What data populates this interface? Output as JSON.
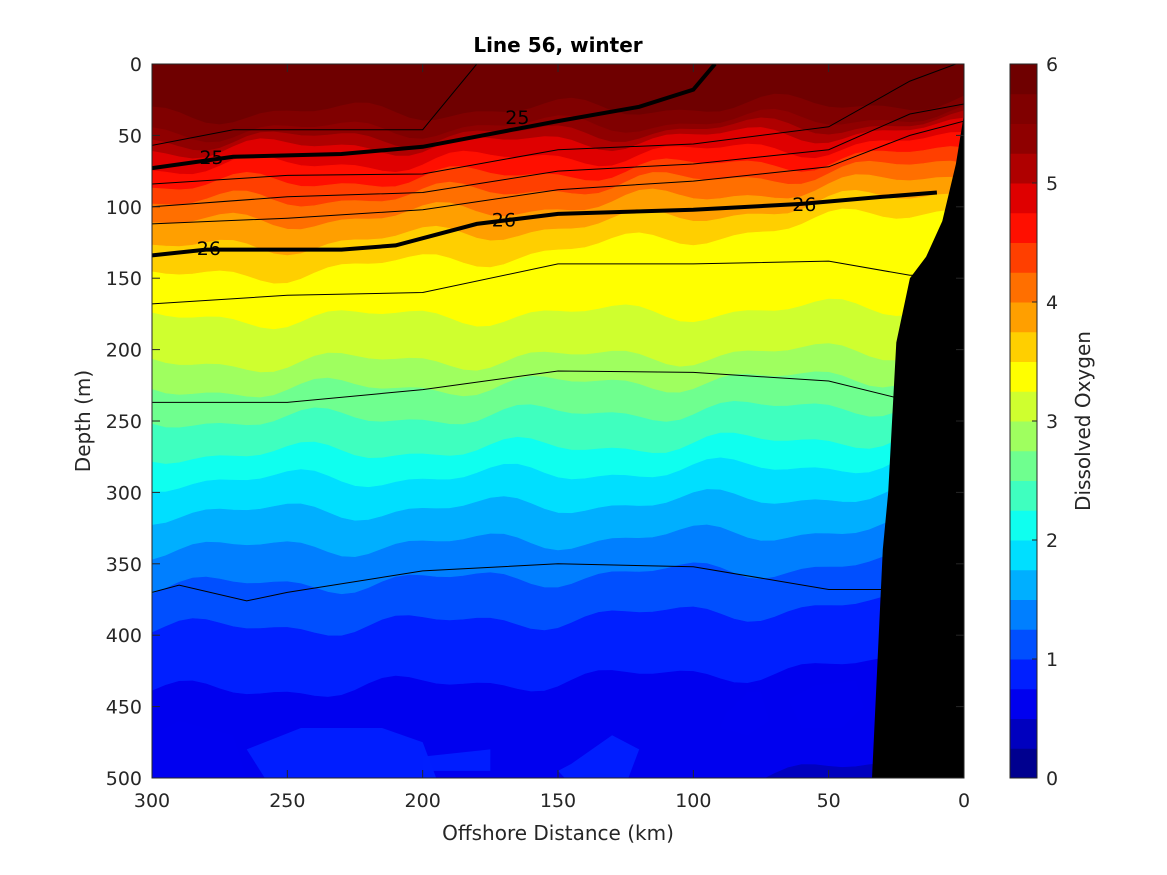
{
  "chart_data": {
    "type": "contourf",
    "title": "Line 56, winter",
    "xlabel": "Offshore Distance (km)",
    "ylabel": "Depth (m)",
    "colorbar_label": "Dissolved Oxygen",
    "xlim": [
      300,
      0
    ],
    "ylim": [
      0,
      500
    ],
    "x_direction": "reversed",
    "y_direction": "depth increasing downward",
    "x_ticks": [
      "300",
      "250",
      "200",
      "150",
      "100",
      "50",
      "0"
    ],
    "y_ticks": [
      "0",
      "50",
      "100",
      "150",
      "200",
      "250",
      "300",
      "350",
      "400",
      "450",
      "500"
    ],
    "colorbar_ticks": [
      "0",
      "1",
      "2",
      "3",
      "4",
      "5",
      "6"
    ],
    "colorbar_range": [
      0,
      6
    ],
    "colorbar_step": 0.25,
    "colormap": "jet",
    "colors": [
      "#00008f",
      "#0000bf",
      "#0000ef",
      "#001fff",
      "#004fff",
      "#007fff",
      "#00afff",
      "#00dfff",
      "#0fffef",
      "#3fffbf",
      "#6fff8f",
      "#9fff5f",
      "#cfff2f",
      "#ffff00",
      "#ffcf00",
      "#ff9f00",
      "#ff6f00",
      "#ff3f00",
      "#ff0f00",
      "#df0000",
      "#af0000",
      "#8f0000",
      "#800000",
      "#6f0000"
    ],
    "oxygen_profile": {
      "depth_m": [
        0,
        25,
        45,
        60,
        75,
        90,
        105,
        120,
        140,
        160,
        185,
        210,
        240,
        270,
        300,
        330,
        360,
        390,
        420,
        460,
        500
      ],
      "oxygen_at_300km": [
        6.0,
        5.9,
        5.6,
        5.0,
        4.7,
        4.4,
        4.1,
        3.9,
        3.6,
        3.4,
        3.2,
        3.0,
        2.6,
        2.3,
        1.9,
        1.6,
        1.3,
        1.05,
        0.8,
        0.7,
        0.6
      ]
    },
    "shelf_bottom": {
      "distance_km": [
        0,
        3,
        8,
        14,
        20,
        25,
        28,
        30,
        33,
        34
      ],
      "depth_m": [
        35,
        70,
        110,
        135,
        150,
        195,
        300,
        340,
        460,
        500
      ]
    },
    "density_contours": [
      {
        "label": "25",
        "distance_km": [
          300,
          270,
          230,
          200,
          150,
          120,
          100,
          92
        ],
        "depth_m": [
          73,
          65,
          63,
          58,
          40,
          30,
          18,
          0
        ]
      },
      {
        "label": "26",
        "distance_km": [
          300,
          280,
          230,
          210,
          180,
          150,
          100,
          60,
          30,
          10
        ],
        "depth_m": [
          134,
          130,
          130,
          127,
          112,
          105,
          102,
          98,
          93,
          90
        ]
      }
    ],
    "thin_contours": [
      {
        "distance_km": [
          300,
          270,
          200,
          180
        ],
        "depth_m": [
          57,
          46,
          46,
          0
        ]
      },
      {
        "distance_km": [
          300,
          250,
          200,
          150,
          100,
          50,
          20,
          3
        ],
        "depth_m": [
          84,
          78,
          77,
          60,
          56,
          44,
          12,
          0
        ]
      },
      {
        "distance_km": [
          300,
          250,
          200,
          150,
          100,
          50,
          20,
          0
        ],
        "depth_m": [
          100,
          93,
          90,
          75,
          70,
          60,
          35,
          28
        ]
      },
      {
        "distance_km": [
          300,
          250,
          200,
          150,
          100,
          50,
          20,
          0
        ],
        "depth_m": [
          112,
          108,
          102,
          88,
          82,
          72,
          50,
          40
        ]
      },
      {
        "distance_km": [
          300,
          250,
          200,
          150,
          100,
          50,
          20,
          0
        ],
        "depth_m": [
          168,
          162,
          160,
          140,
          140,
          138,
          148,
          148
        ]
      },
      {
        "distance_km": [
          300,
          250,
          200,
          150,
          100,
          50,
          20,
          0
        ],
        "depth_m": [
          237,
          237,
          228,
          215,
          216,
          222,
          236,
          236
        ]
      },
      {
        "distance_km": [
          300,
          290,
          265,
          250,
          200,
          150,
          100,
          50,
          30
        ],
        "depth_m": [
          370,
          365,
          376,
          370,
          355,
          350,
          352,
          368,
          368
        ]
      }
    ]
  }
}
